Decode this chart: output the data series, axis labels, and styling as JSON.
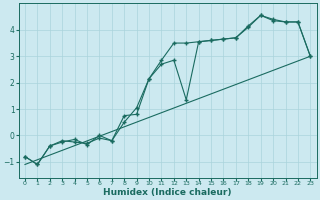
{
  "bg_color": "#cce9f0",
  "grid_color": "#aad4dc",
  "line_color": "#1a6b60",
  "xlabel": "Humidex (Indice chaleur)",
  "xlim": [
    -0.5,
    23.5
  ],
  "ylim": [
    -1.6,
    5.0
  ],
  "xticks": [
    0,
    1,
    2,
    3,
    4,
    5,
    6,
    7,
    8,
    9,
    10,
    11,
    12,
    13,
    14,
    15,
    16,
    17,
    18,
    19,
    20,
    21,
    22,
    23
  ],
  "yticks": [
    -1,
    0,
    1,
    2,
    3,
    4
  ],
  "line1_x": [
    0,
    1,
    2,
    3,
    4,
    5,
    6,
    7,
    8,
    9,
    10,
    11,
    12,
    13,
    14,
    15,
    16,
    17,
    18,
    19,
    20,
    21,
    22,
    23
  ],
  "line1_y": [
    -0.8,
    -1.1,
    -0.4,
    -0.2,
    -0.25,
    -0.3,
    -0.1,
    -0.2,
    0.75,
    0.8,
    2.15,
    2.85,
    3.5,
    3.5,
    3.55,
    3.6,
    3.65,
    3.7,
    4.1,
    4.55,
    4.35,
    4.3,
    4.3,
    3.0
  ],
  "line2_x": [
    0,
    1,
    2,
    3,
    4,
    5,
    6,
    7,
    8,
    9,
    10,
    11,
    12,
    13,
    14,
    15,
    16,
    17,
    18,
    19,
    20,
    21,
    22,
    23
  ],
  "line2_y": [
    -0.8,
    -1.1,
    -0.4,
    -0.25,
    -0.15,
    -0.35,
    0.0,
    -0.2,
    0.5,
    1.05,
    2.15,
    2.7,
    2.85,
    1.35,
    3.55,
    3.6,
    3.65,
    3.7,
    4.15,
    4.55,
    4.4,
    4.3,
    4.3,
    3.0
  ],
  "line3_x": [
    0,
    23
  ],
  "line3_y": [
    -1.1,
    3.0
  ]
}
